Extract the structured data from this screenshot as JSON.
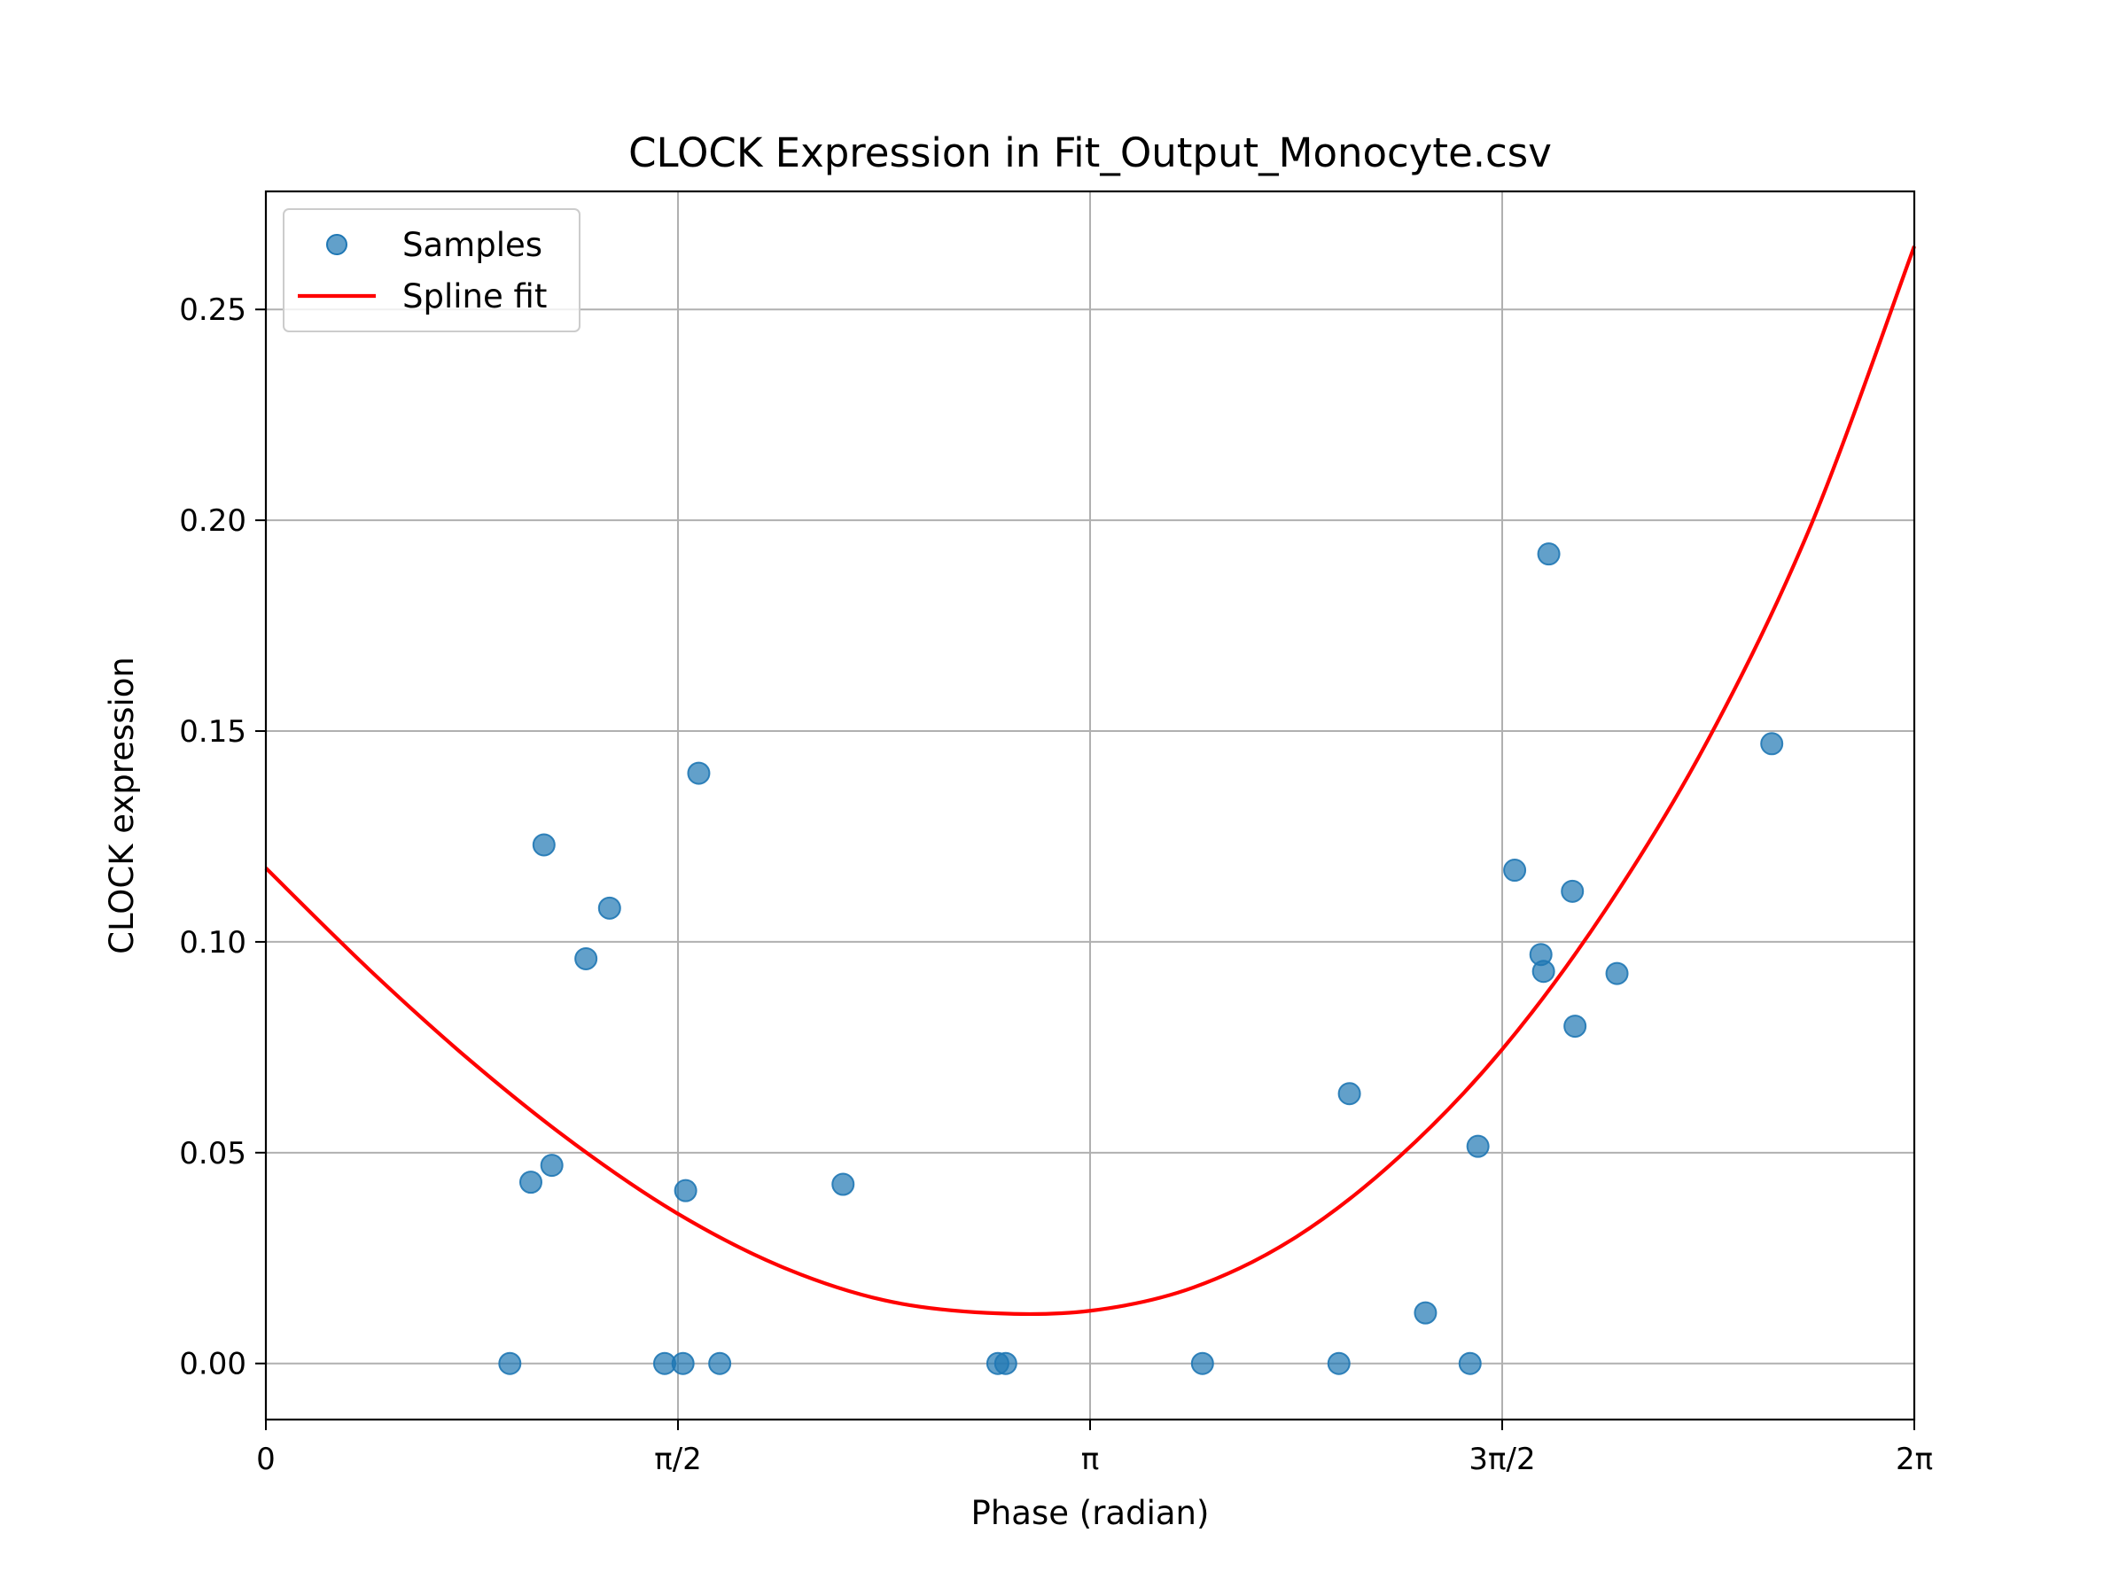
{
  "chart_data": {
    "type": "scatter",
    "title": "CLOCK Expression in Fit_Output_Monocyte.csv",
    "xlabel": "Phase (radian)",
    "ylabel": "CLOCK expression",
    "xlim": [
      0,
      6.2832
    ],
    "ylim": [
      -0.0133,
      0.278
    ],
    "x_ticks": [
      {
        "value": 0,
        "label": "0"
      },
      {
        "value": 1.5708,
        "label": "π/2"
      },
      {
        "value": 3.1416,
        "label": "π"
      },
      {
        "value": 4.7124,
        "label": "3π/2"
      },
      {
        "value": 6.2832,
        "label": "2π"
      }
    ],
    "y_ticks": [
      {
        "value": 0.0,
        "label": "0.00"
      },
      {
        "value": 0.05,
        "label": "0.05"
      },
      {
        "value": 0.1,
        "label": "0.10"
      },
      {
        "value": 0.15,
        "label": "0.15"
      },
      {
        "value": 0.2,
        "label": "0.20"
      },
      {
        "value": 0.25,
        "label": "0.25"
      }
    ],
    "grid": true,
    "legend_position": "top-left",
    "series": [
      {
        "name": "Samples",
        "kind": "scatter",
        "color": "#1f77b4",
        "alpha": 0.7,
        "points": [
          [
            0.93,
            0.0
          ],
          [
            1.01,
            0.043
          ],
          [
            1.06,
            0.123
          ],
          [
            1.09,
            0.047
          ],
          [
            1.22,
            0.096
          ],
          [
            1.31,
            0.108
          ],
          [
            1.52,
            0.0
          ],
          [
            1.59,
            0.0
          ],
          [
            1.6,
            0.041
          ],
          [
            1.65,
            0.14
          ],
          [
            1.73,
            0.0
          ],
          [
            2.2,
            0.0425
          ],
          [
            2.79,
            0.0
          ],
          [
            2.82,
            0.0
          ],
          [
            3.57,
            0.0
          ],
          [
            4.09,
            0.0
          ],
          [
            4.13,
            0.064
          ],
          [
            4.42,
            0.012
          ],
          [
            4.59,
            0.0
          ],
          [
            4.62,
            0.0515
          ],
          [
            4.76,
            0.117
          ],
          [
            4.86,
            0.097
          ],
          [
            4.87,
            0.093
          ],
          [
            4.89,
            0.192
          ],
          [
            4.98,
            0.112
          ],
          [
            4.99,
            0.08
          ],
          [
            5.15,
            0.0925
          ],
          [
            5.74,
            0.147
          ]
        ]
      },
      {
        "name": "Spline fit",
        "kind": "line",
        "color": "#ff0000",
        "points": [
          [
            0.0,
            0.1175
          ],
          [
            0.3927,
            0.0935
          ],
          [
            0.7854,
            0.0715
          ],
          [
            1.1781,
            0.052
          ],
          [
            1.5708,
            0.0355
          ],
          [
            1.9635,
            0.023
          ],
          [
            2.3562,
            0.015
          ],
          [
            2.7489,
            0.012
          ],
          [
            3.1416,
            0.0125
          ],
          [
            3.5343,
            0.018
          ],
          [
            3.927,
            0.03
          ],
          [
            4.3197,
            0.049
          ],
          [
            4.7124,
            0.0745
          ],
          [
            5.1051,
            0.1075
          ],
          [
            5.4978,
            0.148
          ],
          [
            5.8905,
            0.199
          ],
          [
            6.2832,
            0.265
          ]
        ]
      }
    ]
  }
}
